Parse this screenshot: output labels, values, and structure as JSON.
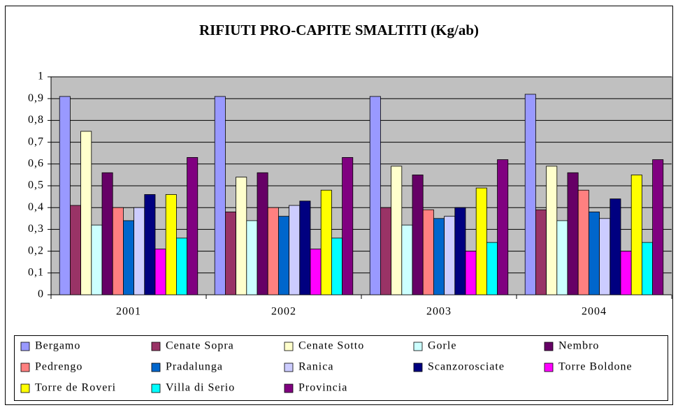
{
  "chart_data": {
    "type": "bar",
    "title": "RIFIUTI PRO-CAPITE SMALTITI (Kg/ab)",
    "categories": [
      "2001",
      "2002",
      "2003",
      "2004"
    ],
    "series": [
      {
        "name": "Bergamo",
        "color": "#9999FF",
        "values": [
          0.91,
          0.91,
          0.91,
          0.92
        ]
      },
      {
        "name": "Cenate Sopra",
        "color": "#993366",
        "values": [
          0.41,
          0.38,
          0.4,
          0.39
        ]
      },
      {
        "name": "Cenate Sotto",
        "color": "#FFFFCC",
        "values": [
          0.75,
          0.54,
          0.59,
          0.59
        ]
      },
      {
        "name": "Gorle",
        "color": "#CCFFFF",
        "values": [
          0.32,
          0.34,
          0.32,
          0.34
        ]
      },
      {
        "name": "Nembro",
        "color": "#660066",
        "values": [
          0.56,
          0.56,
          0.55,
          0.56
        ]
      },
      {
        "name": "Pedrengo",
        "color": "#FF8080",
        "values": [
          0.4,
          0.4,
          0.39,
          0.48
        ]
      },
      {
        "name": "Pradalunga",
        "color": "#0066CC",
        "values": [
          0.34,
          0.36,
          0.35,
          0.38
        ]
      },
      {
        "name": "Ranica",
        "color": "#CCCCFF",
        "values": [
          0.4,
          0.41,
          0.36,
          0.35
        ]
      },
      {
        "name": "Scanzorosciate",
        "color": "#000080",
        "values": [
          0.46,
          0.43,
          0.4,
          0.44
        ]
      },
      {
        "name": "Torre Boldone",
        "color": "#FF00FF",
        "values": [
          0.21,
          0.21,
          0.2,
          0.2
        ]
      },
      {
        "name": "Torre de Roveri",
        "color": "#FFFF00",
        "values": [
          0.46,
          0.48,
          0.49,
          0.55
        ]
      },
      {
        "name": "Villa di Serio",
        "color": "#00FFFF",
        "values": [
          0.26,
          0.26,
          0.24,
          0.24
        ]
      },
      {
        "name": "Provincia",
        "color": "#800080",
        "values": [
          0.63,
          0.63,
          0.62,
          0.62
        ]
      }
    ],
    "ylim": [
      0,
      1
    ],
    "yticks": [
      0,
      {
        "value": 0.1,
        "label": "0,1"
      },
      {
        "value": 0.2,
        "label": "0,2"
      },
      {
        "value": 0.3,
        "label": "0,3"
      },
      {
        "value": 0.4,
        "label": "0,4"
      },
      {
        "value": 0.5,
        "label": "0,5"
      },
      {
        "value": 0.6,
        "label": "0,6"
      },
      {
        "value": 0.7,
        "label": "0,7"
      },
      {
        "value": 0.8,
        "label": "0,8"
      },
      {
        "value": 0.9,
        "label": "0,9"
      },
      1
    ],
    "grid": true,
    "legend": "bottom",
    "plot_background": "#C0C0C0"
  }
}
